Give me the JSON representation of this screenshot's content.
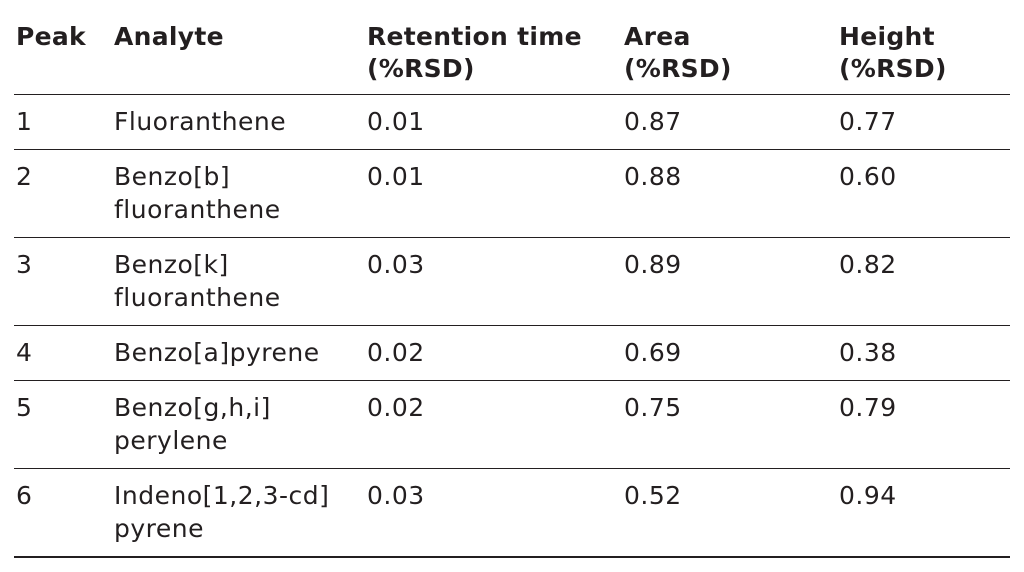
{
  "table": {
    "headers": {
      "peak": [
        "Peak"
      ],
      "analyte": [
        "Analyte"
      ],
      "retention_time": [
        "Retention time",
        "(%RSD)"
      ],
      "area": [
        "Area",
        "(%RSD)"
      ],
      "height": [
        "Height",
        "(%RSD)"
      ]
    },
    "rows": [
      {
        "peak": "1",
        "analyte": [
          "Fluoranthene"
        ],
        "retention_time": "0.01",
        "area": "0.87",
        "height": "0.77"
      },
      {
        "peak": "2",
        "analyte": [
          "Benzo[b]",
          "fluoranthene"
        ],
        "retention_time": "0.01",
        "area": "0.88",
        "height": "0.60"
      },
      {
        "peak": "3",
        "analyte": [
          "Benzo[k]",
          "fluoranthene"
        ],
        "retention_time": "0.03",
        "area": "0.89",
        "height": "0.82"
      },
      {
        "peak": "4",
        "analyte": [
          "Benzo[a]pyrene"
        ],
        "retention_time": "0.02",
        "area": "0.69",
        "height": "0.38"
      },
      {
        "peak": "5",
        "analyte": [
          "Benzo[g,h,i]",
          "perylene"
        ],
        "retention_time": "0.02",
        "area": "0.75",
        "height": "0.79"
      },
      {
        "peak": "6",
        "analyte": [
          "Indeno[1,2,3-cd]",
          "pyrene"
        ],
        "retention_time": "0.03",
        "area": "0.52",
        "height": "0.94"
      }
    ]
  }
}
